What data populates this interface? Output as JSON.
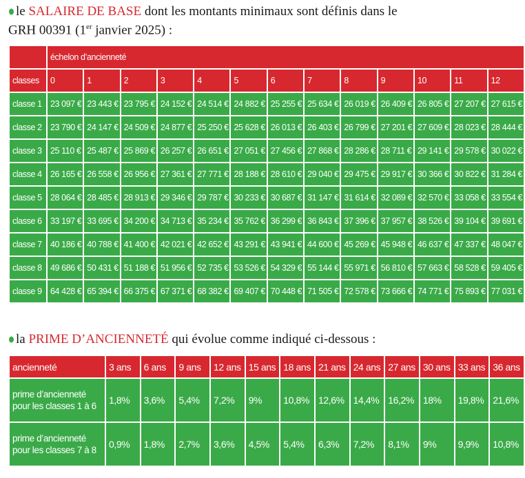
{
  "intro_salary": {
    "prefix": "le",
    "highlight": "SALAIRE DE BASE",
    "text_line1": "dont les montants minimaux sont définis dans le",
    "text_line2": "GRH 00391 (1",
    "superscript": "er",
    "suffix": "janvier 2025) :"
  },
  "salary_table": {
    "group_header": "échelon d’ancienneté",
    "row_header": "classes",
    "columns": [
      "0",
      "1",
      "2",
      "3",
      "4",
      "5",
      "6",
      "7",
      "8",
      "9",
      "10",
      "11",
      "12"
    ],
    "rows": [
      {
        "label": "classe 1",
        "values": [
          "23 097 €",
          "23 443 €",
          "23 795 €",
          "24 152 €",
          "24 514 €",
          "24 882 €",
          "25 255 €",
          "25 634 €",
          "26 019 €",
          "26 409 €",
          "26 805 €",
          "27 207 €",
          "27 615 €"
        ]
      },
      {
        "label": "classe 2",
        "values": [
          "23 790 €",
          "24 147 €",
          "24 509 €",
          "24 877 €",
          "25 250 €",
          "25 628 €",
          "26 013 €",
          "26 403 €",
          "26 799 €",
          "27 201 €",
          "27 609 €",
          "28 023 €",
          "28 444 €"
        ]
      },
      {
        "label": "classe 3",
        "values": [
          "25 110 €",
          "25 487 €",
          "25 869 €",
          "26 257 €",
          "26 651 €",
          "27 051 €",
          "27 456 €",
          "27 868 €",
          "28 286 €",
          "28 711 €",
          "29 141 €",
          "29 578 €",
          "30 022 €"
        ]
      },
      {
        "label": "classe 4",
        "values": [
          "26 165 €",
          "26 558 €",
          "26 956 €",
          "27 361 €",
          "27 771 €",
          "28 188 €",
          "28 610 €",
          "29 040 €",
          "29 475 €",
          "29 917 €",
          "30 366 €",
          "30 822 €",
          "31 284 €"
        ]
      },
      {
        "label": "classe 5",
        "values": [
          "28 064 €",
          "28 485 €",
          "28 913 €",
          "29 346 €",
          "29 787 €",
          "30 233 €",
          "30 687 €",
          "31 147 €",
          "31 614 €",
          "32 089 €",
          "32 570 €",
          "33 058 €",
          "33 554 €"
        ]
      },
      {
        "label": "classe 6",
        "values": [
          "33 197 €",
          "33 695 €",
          "34 200 €",
          "34 713 €",
          "35 234 €",
          "35 762 €",
          "36 299 €",
          "36 843 €",
          "37 396 €",
          "37 957 €",
          "38 526 €",
          "39 104 €",
          "39 691 €"
        ]
      },
      {
        "label": "classe 7",
        "values": [
          "40 186 €",
          "40 788 €",
          "41 400 €",
          "42 021 €",
          "42 652 €",
          "43 291 €",
          "43 941 €",
          "44 600 €",
          "45 269 €",
          "45 948 €",
          "46 637 €",
          "47 337 €",
          "48 047 €"
        ]
      },
      {
        "label": "classe 8",
        "values": [
          "49 686 €",
          "50 431 €",
          "51 188 €",
          "51 956 €",
          "52 735 €",
          "53 526 €",
          "54 329 €",
          "55 144 €",
          "55 971 €",
          "56 810 €",
          "57 663 €",
          "58 528 €",
          "59 405 €"
        ]
      },
      {
        "label": "classe 9",
        "values": [
          "64 428 €",
          "65 394 €",
          "66 375 €",
          "67 371 €",
          "68 382 €",
          "69 407 €",
          "70 448 €",
          "71 505 €",
          "72 578 €",
          "73 666 €",
          "74 771 €",
          "75 893 €",
          "77 031 €"
        ]
      }
    ]
  },
  "intro_bonus": {
    "prefix": "la",
    "highlight": "PRIME D’ANCIENNETÉ",
    "text": "qui évolue comme indiqué ci-dessous :"
  },
  "bonus_table": {
    "row_header": "ancienneté",
    "columns": [
      "3 ans",
      "6 ans",
      "9 ans",
      "12 ans",
      "15 ans",
      "18 ans",
      "21 ans",
      "24 ans",
      "27 ans",
      "30 ans",
      "33 ans",
      "36 ans"
    ],
    "rows": [
      {
        "label": "prime d’ancienneté pour les classes 1 à 6",
        "values": [
          "1,8%",
          "3,6%",
          "5,4%",
          "7,2%",
          "9%",
          "10,8%",
          "12,6%",
          "14,4%",
          "16,2%",
          "18%",
          "19,8%",
          "21,6%"
        ]
      },
      {
        "label": "prime d’ancienneté pour les classes 7 à 8",
        "values": [
          "0,9%",
          "1,8%",
          "2,7%",
          "3,6%",
          "4,5%",
          "5,4%",
          "6,3%",
          "7,2%",
          "8,1%",
          "9%",
          "9,9%",
          "10,8%"
        ]
      }
    ]
  }
}
